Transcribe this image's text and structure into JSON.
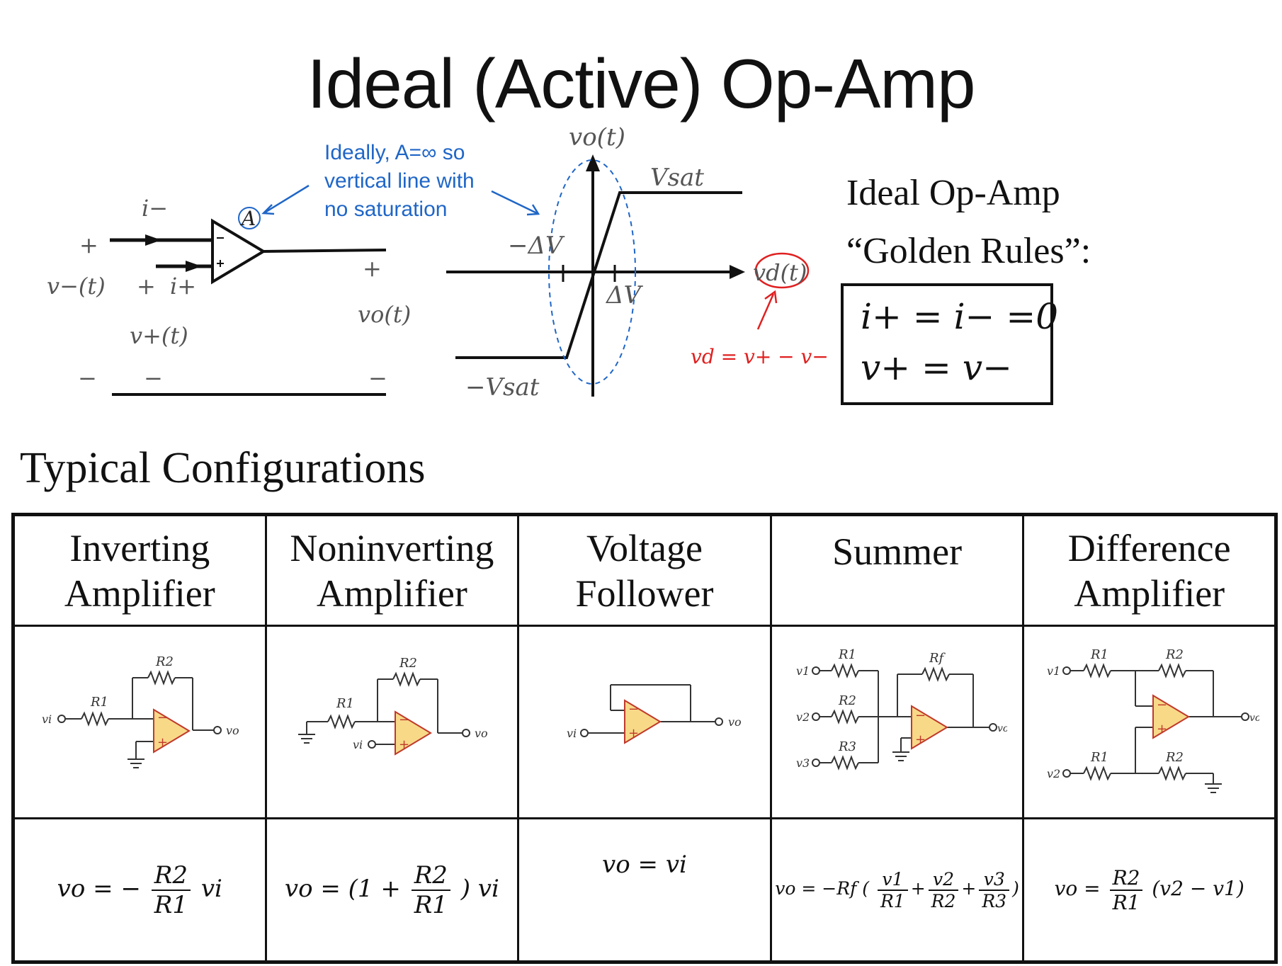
{
  "title": "Ideal (Active) Op-Amp",
  "symbol": {
    "i_minus": "i−",
    "plus_left": "+",
    "v_minus": "v−(t)",
    "plus_mid": "+",
    "i_plus": "i+",
    "v_plus": "v+(t)",
    "minus_left": "−",
    "minus_mid": "−",
    "plus_out": "+",
    "vo": "vo(t)",
    "minus_out": "−",
    "gain": "A"
  },
  "annotation_gain": [
    "Ideally, A=∞ so",
    "vertical line with",
    "no saturation"
  ],
  "transfer": {
    "y_label": "vo(t)",
    "vsat": "Vsat",
    "neg_vsat": "−Vsat",
    "neg_dv": "−ΔV",
    "pos_dv": "ΔV",
    "x_label": "vd(t)",
    "vd_def": "vd = v+ − v−"
  },
  "golden_rules": {
    "title_line1": "Ideal Op-Amp",
    "title_line2": "“Golden Rules”:",
    "rule1": "i+ = i− =0",
    "rule2": "v+ = v−"
  },
  "section_title": "Typical Configurations",
  "configs": [
    {
      "name_line1": "Inverting",
      "name_line2": "Amplifier"
    },
    {
      "name_line1": "Noninverting",
      "name_line2": "Amplifier"
    },
    {
      "name_line1": "Voltage",
      "name_line2": "Follower"
    },
    {
      "name_line1": "Summer",
      "name_line2": ""
    },
    {
      "name_line1": "Difference",
      "name_line2": "Amplifier"
    }
  ],
  "circuit_labels": {
    "R1": "R1",
    "R2": "R2",
    "R3": "R3",
    "Rf": "Rf",
    "vi": "vi",
    "vo": "vo",
    "v1": "v1",
    "v2": "v2",
    "v3": "v3"
  },
  "formulas": {
    "inverting": {
      "lhs": "vo = −",
      "num": "R2",
      "den": "R1",
      "rhs": "vi"
    },
    "noninverting": {
      "lhs": "vo = (1 +",
      "num": "R2",
      "den": "R1",
      "rhs": ") vi"
    },
    "follower": "vo = vi",
    "summer": {
      "lhs": "vo = −Rf (",
      "n1": "v1",
      "d1": "R1",
      "plus1": "+",
      "n2": "v2",
      "d2": "R2",
      "plus2": "+",
      "n3": "v3",
      "d3": "R3",
      "rhs": ")"
    },
    "difference": {
      "lhs": "vo =",
      "num": "R2",
      "den": "R1",
      "rhs": "(v2 − v1)"
    }
  },
  "colors": {
    "blue": "#1f66c7",
    "red": "#e02020",
    "opamp_fill": "#f8d988",
    "opamp_stroke": "#c0392b",
    "wire": "#222222"
  }
}
